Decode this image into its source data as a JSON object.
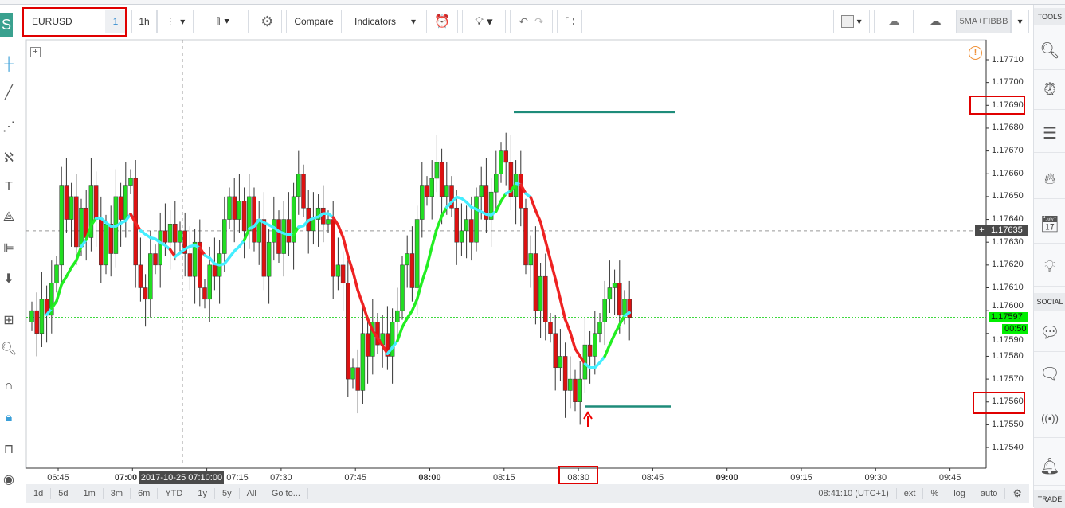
{
  "toolbar": {
    "symbol": "EURUSD",
    "symbol_badge": "1",
    "interval": "1h",
    "compare": "Compare",
    "indicators": "Indicators",
    "template": "5MA+FIBBB"
  },
  "logo": "S",
  "right_sidebar": {
    "tools_header": "TOOLS",
    "social_header": "SOCIAL",
    "trade_header": "TRADE"
  },
  "price_axis": {
    "ticks": [
      "1.17710",
      "1.17700",
      "1.17690",
      "1.17680",
      "1.17670",
      "1.17660",
      "1.17650",
      "1.17640",
      "1.17630",
      "1.17620",
      "1.17610",
      "1.17600",
      "1.17590",
      "1.17580",
      "1.17570",
      "1.17560",
      "1.17550",
      "1.17540"
    ],
    "crosshair_price": "1.17635",
    "last_price": "1.17597",
    "countdown": "00:50"
  },
  "time_axis": {
    "ticks": [
      "06:45",
      "07:00",
      "07:15",
      "07:30",
      "07:45",
      "08:00",
      "08:15",
      "08:30",
      "08:45",
      "09:00",
      "09:15",
      "09:30",
      "09:45"
    ],
    "crosshair_time": "2017-10-25 07:10:00"
  },
  "bottom_bar": {
    "ranges": [
      "1d",
      "5d",
      "1m",
      "3m",
      "6m",
      "YTD",
      "1y",
      "5y",
      "All",
      "Go to..."
    ],
    "clock": "08:41:10 (UTC+1)",
    "options": [
      "ext",
      "%",
      "log",
      "auto"
    ]
  },
  "colors": {
    "up": "#22dd22",
    "down": "#dd1111",
    "ma_up": "#22ee22",
    "ma_down": "#ee2222",
    "ma_flat": "#44eeff",
    "level_line": "#1e8c7a",
    "last_price": "#00ee00"
  },
  "chart_data": {
    "type": "candlestick",
    "symbol": "EURUSD",
    "start_time": "06:40",
    "interval_minutes": 1,
    "closes": [
      1.176,
      1.1759,
      1.17605,
      1.17598,
      1.17612,
      1.1762,
      1.17655,
      1.1764,
      1.1765,
      1.17628,
      1.17645,
      1.17632,
      1.17655,
      1.1764,
      1.1762,
      1.17638,
      1.17625,
      1.1765,
      1.1764,
      1.17655,
      1.17658,
      1.1762,
      1.1761,
      1.17605,
      1.17625,
      1.1762,
      1.17635,
      1.1763,
      1.17638,
      1.1763,
      1.17635,
      1.17625,
      1.17615,
      1.1763,
      1.1761,
      1.17605,
      1.1762,
      1.17615,
      1.17625,
      1.1764,
      1.1765,
      1.1764,
      1.17648,
      1.17635,
      1.1765,
      1.1763,
      1.1764,
      1.17615,
      1.1763,
      1.1764,
      1.17625,
      1.1764,
      1.1763,
      1.1765,
      1.1766,
      1.17645,
      1.17635,
      1.1764,
      1.17645,
      1.17638,
      1.1764,
      1.17615,
      1.1762,
      1.17612,
      1.1757,
      1.17575,
      1.17565,
      1.1759,
      1.1758,
      1.17595,
      1.17585,
      1.1759,
      1.1758,
      1.17595,
      1.176,
      1.1762,
      1.17625,
      1.1761,
      1.1764,
      1.17655,
      1.1765,
      1.17658,
      1.17665,
      1.1765,
      1.17655,
      1.17645,
      1.1763,
      1.17635,
      1.1764,
      1.1763,
      1.1765,
      1.17655,
      1.1764,
      1.17652,
      1.1766,
      1.1767,
      1.17665,
      1.1765,
      1.1766,
      1.17645,
      1.1762,
      1.17625,
      1.176,
      1.17615,
      1.17595,
      1.1759,
      1.17575,
      1.1758,
      1.17565,
      1.1757,
      1.1756,
      1.1757,
      1.17585,
      1.1758,
      1.1759,
      1.17595,
      1.17605,
      1.1761,
      1.17612,
      1.17598,
      1.17605,
      1.17597
    ],
    "levels": [
      1.17687,
      1.17558
    ],
    "ylim": [
      1.17535,
      1.1772
    ]
  }
}
